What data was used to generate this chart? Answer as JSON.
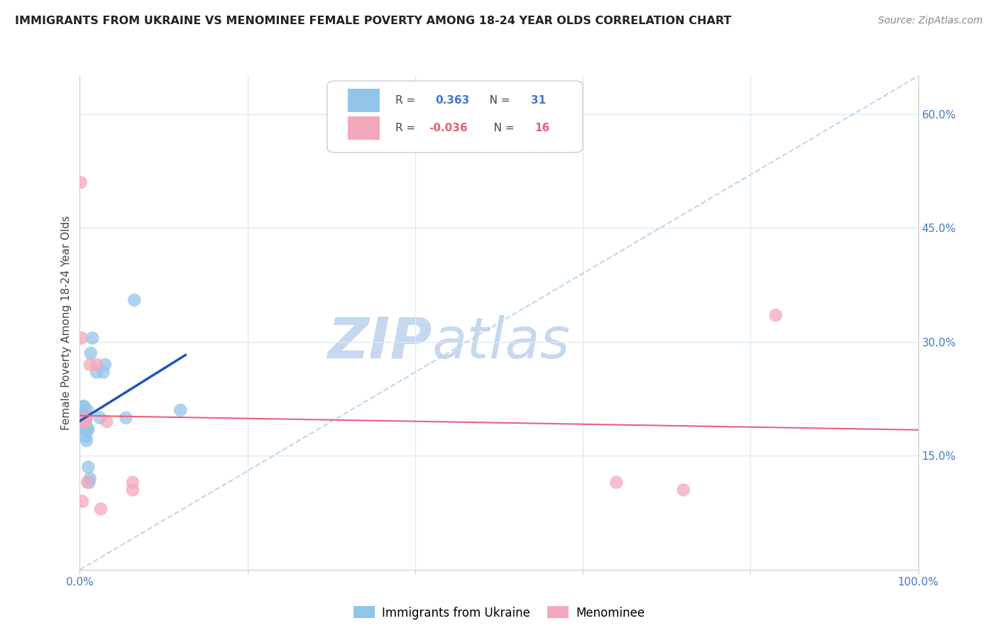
{
  "title": "IMMIGRANTS FROM UKRAINE VS MENOMINEE FEMALE POVERTY AMONG 18-24 YEAR OLDS CORRELATION CHART",
  "source": "Source: ZipAtlas.com",
  "ylabel": "Female Poverty Among 18-24 Year Olds",
  "xlim": [
    0,
    1.0
  ],
  "ylim": [
    0,
    0.65
  ],
  "legend_label1": "Immigrants from Ukraine",
  "legend_label2": "Menominee",
  "r1": "0.363",
  "n1": "31",
  "r2": "-0.036",
  "n2": "16",
  "ukraine_color": "#92C5EA",
  "menominee_color": "#F4A8BC",
  "ukraine_line_color": "#2255BB",
  "menominee_line_color": "#E8607A",
  "diagonal_color": "#B8D4EA",
  "watermark_zip_color": "#C8DCF0",
  "watermark_atlas_color": "#C8DCF0",
  "background_color": "#FFFFFF",
  "grid_color": "#DDEAF2",
  "tick_label_color": "#4477CC",
  "ukraine_x": [
    0.001,
    0.002,
    0.003,
    0.003,
    0.004,
    0.004,
    0.005,
    0.005,
    0.005,
    0.006,
    0.006,
    0.007,
    0.007,
    0.008,
    0.008,
    0.008,
    0.009,
    0.009,
    0.01,
    0.01,
    0.011,
    0.012,
    0.013,
    0.015,
    0.02,
    0.024,
    0.028,
    0.03,
    0.055,
    0.065,
    0.12
  ],
  "ukraine_y": [
    0.195,
    0.195,
    0.205,
    0.2,
    0.215,
    0.195,
    0.215,
    0.2,
    0.185,
    0.205,
    0.195,
    0.195,
    0.175,
    0.2,
    0.185,
    0.17,
    0.21,
    0.185,
    0.185,
    0.135,
    0.115,
    0.12,
    0.285,
    0.305,
    0.26,
    0.2,
    0.26,
    0.27,
    0.2,
    0.355,
    0.21
  ],
  "menominee_x": [
    0.001,
    0.002,
    0.003,
    0.005,
    0.006,
    0.007,
    0.009,
    0.012,
    0.02,
    0.025,
    0.032,
    0.063,
    0.063,
    0.64,
    0.72,
    0.83
  ],
  "menominee_y": [
    0.51,
    0.305,
    0.09,
    0.195,
    0.195,
    0.2,
    0.115,
    0.27,
    0.27,
    0.08,
    0.195,
    0.105,
    0.115,
    0.115,
    0.105,
    0.335
  ]
}
